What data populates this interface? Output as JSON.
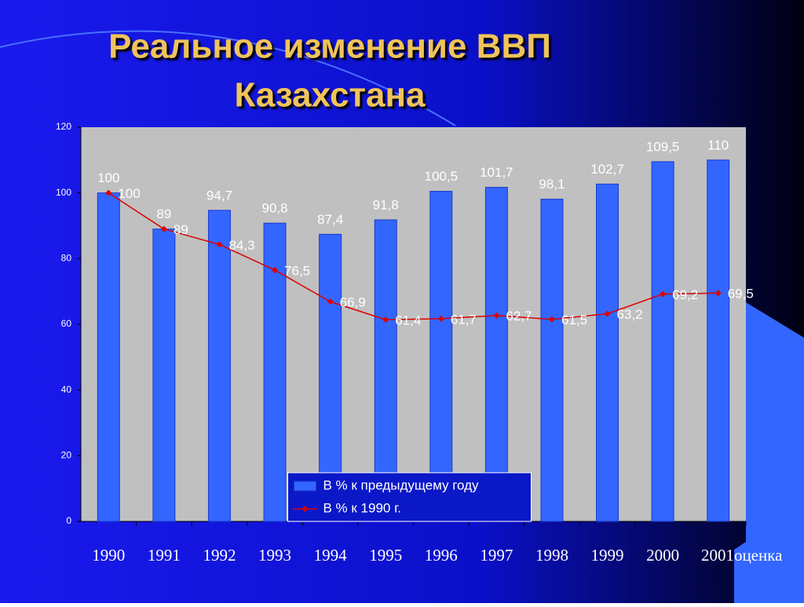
{
  "chart_data": {
    "type": "bar_line",
    "title": [
      "Реальное изменение ВВП",
      "Казахстана"
    ],
    "categories": [
      "1990",
      "1991",
      "1992",
      "1993",
      "1994",
      "1995",
      "1996",
      "1997",
      "1998",
      "1999",
      "2000",
      "2001оценка"
    ],
    "series": [
      {
        "name": "В % к предыдущему году",
        "type": "bar",
        "color": "#3366ff",
        "values": [
          100,
          89,
          94.7,
          90.8,
          87.4,
          91.8,
          100.5,
          101.7,
          98.1,
          102.7,
          109.5,
          110
        ],
        "value_labels": [
          "100",
          "89",
          "94,7",
          "90,8",
          "87,4",
          "91,8",
          "100,5",
          "101,7",
          "98,1",
          "102,7",
          "109,5",
          "110"
        ]
      },
      {
        "name": "В % к 1990 г.",
        "type": "line",
        "color": "#dd0000",
        "values": [
          100,
          89,
          84.3,
          76.5,
          66.9,
          61.4,
          61.7,
          62.7,
          61.5,
          63.2,
          69.2,
          69.5
        ],
        "value_labels": [
          "100",
          "89",
          "84,3",
          "76,5",
          "66,9",
          "61,4",
          "61,7",
          "62,7",
          "61,5",
          "63,2",
          "69,2",
          "69,5"
        ]
      }
    ],
    "ylim": [
      0,
      120
    ],
    "yticks": [
      0,
      20,
      40,
      60,
      80,
      100,
      120
    ],
    "legend": "bottom"
  }
}
